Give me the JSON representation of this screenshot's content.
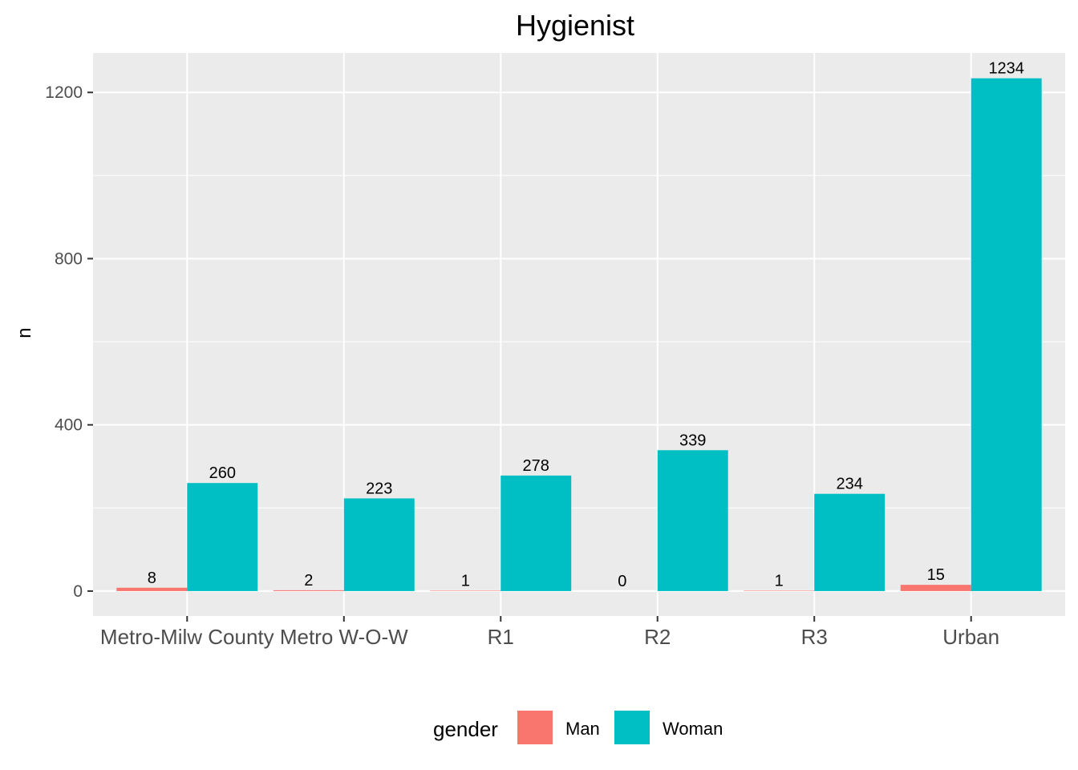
{
  "chart_data": {
    "type": "bar",
    "title": "Hygienist",
    "xlabel": "",
    "ylabel": "n",
    "categories": [
      "Metro-Milw County",
      "Metro W-O-W",
      "R1",
      "R2",
      "R3",
      "Urban"
    ],
    "series": [
      {
        "name": "Man",
        "values": [
          8,
          2,
          1,
          0,
          1,
          15
        ]
      },
      {
        "name": "Woman",
        "values": [
          260,
          223,
          278,
          339,
          234,
          1234
        ]
      }
    ],
    "y_ticks": [
      0,
      400,
      800,
      1200
    ],
    "ylim": [
      -60,
      1295
    ],
    "grid": true,
    "legend": {
      "title": "gender",
      "position": "bottom"
    },
    "colors": {
      "Man": "#F8766D",
      "Woman": "#00BFC4",
      "panel": "#EBEBEB",
      "grid": "#FFFFFF"
    }
  }
}
